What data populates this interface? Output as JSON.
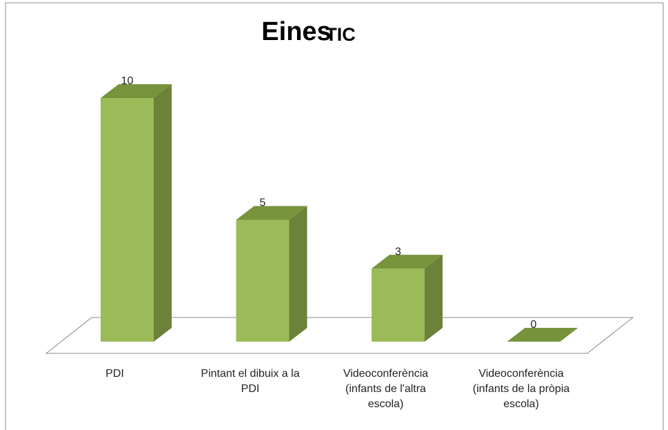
{
  "chart_data": {
    "type": "bar3d",
    "title": "Eines",
    "title_tag": "TIC",
    "categories": [
      "PDI",
      "Pintant el dibuix a la PDI",
      "Videoconferència (infants de l'altra escola)",
      "Videoconferència (infants de la pròpia escola)"
    ],
    "values": [
      10,
      5,
      3,
      0
    ],
    "color": "#9bbb59",
    "side_color": "#6b8238",
    "top_color": "#77933c"
  }
}
